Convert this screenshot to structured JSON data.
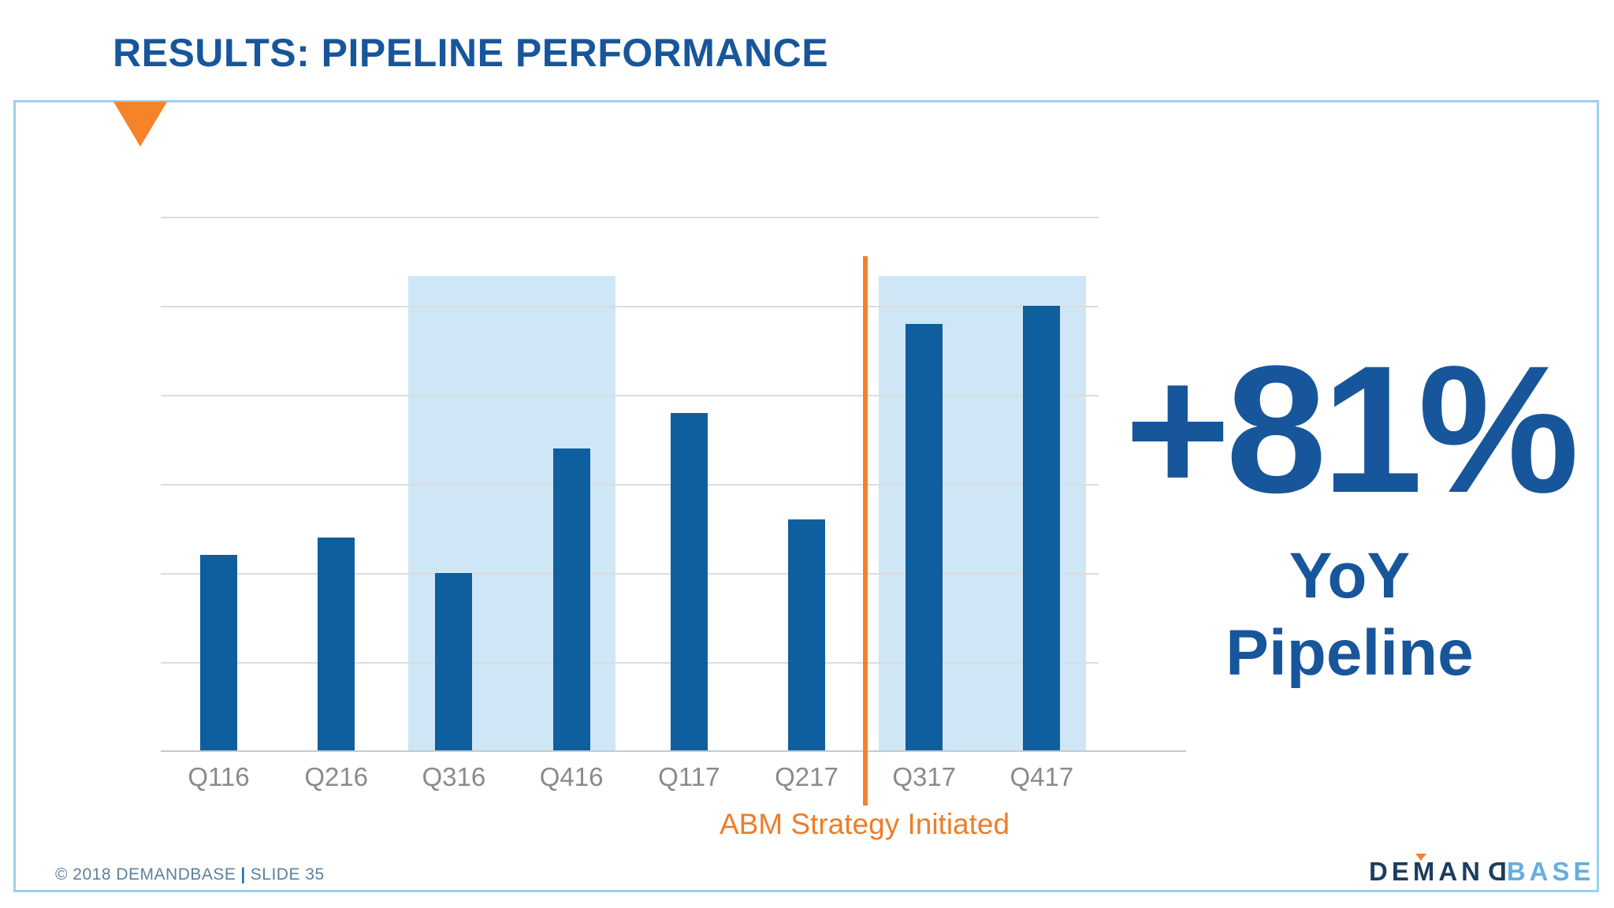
{
  "slide": {
    "title": "RESULTS: PIPELINE PERFORMANCE"
  },
  "chart_data": {
    "type": "bar",
    "categories": [
      "Q116",
      "Q216",
      "Q316",
      "Q416",
      "Q117",
      "Q217",
      "Q317",
      "Q417"
    ],
    "values": [
      2.2,
      2.4,
      2.0,
      3.4,
      3.8,
      2.6,
      4.8,
      5.0
    ],
    "title": "",
    "xlabel": "",
    "ylabel": "",
    "ylim": [
      0,
      6
    ],
    "grid": true,
    "y_axis_labels_visible": false,
    "value_units": "relative pipeline volume (unlabeled axis, 1 unit per gridline)",
    "highlight_groups": [
      [
        "Q316",
        "Q416"
      ],
      [
        "Q317",
        "Q417"
      ]
    ],
    "annotation": {
      "label": "ABM Strategy Initiated",
      "position_after_category": "Q217"
    },
    "colors": {
      "bar": "#0F5F9E",
      "highlight": "#CEE6F5",
      "gridline": "#DCDCDC",
      "axis_line": "#C9C9C9",
      "axis_label": "#8A8A8A",
      "annotation": "#F5812B"
    }
  },
  "stat": {
    "value": "+81%",
    "label_line1": "YoY",
    "label_line2": "Pipeline",
    "color": "#17569B"
  },
  "footer": {
    "copyright": "© 2018 DEMANDBASE",
    "divider": "|",
    "slide_number": "SLIDE 35"
  },
  "logo": {
    "part_demand": "DEMAN",
    "part_demand_reversed": "D",
    "part_base": "BASE",
    "navy": "#1C3D5C",
    "light_blue": "#66AEDE",
    "accent_orange": "#F08232"
  },
  "theme": {
    "title_blue": "#17569B",
    "panel_border_blue": "#9AD2EF",
    "marker_orange": "#F6822A",
    "background": "#FFFFFF"
  }
}
